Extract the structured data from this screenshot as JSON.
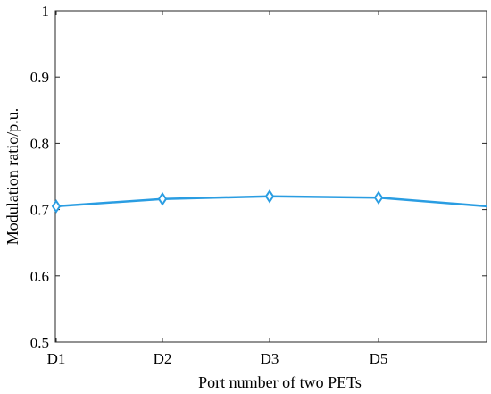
{
  "chart_data": {
    "type": "line",
    "title": "",
    "xlabel": "Port number of two PETs",
    "ylabel": "Modulation ratio/p.u.",
    "categories": [
      "D1",
      "D2",
      "D3",
      "D5"
    ],
    "ylim": [
      0.5,
      1.0
    ],
    "yticks": [
      0.5,
      0.6,
      0.7,
      0.8,
      0.9,
      1.0
    ],
    "ytick_labels": [
      "0.5",
      "0.6",
      "0.7",
      "0.8",
      "0.9",
      "1"
    ],
    "grid": false,
    "legend": "none",
    "series": [
      {
        "color": "#2a9de2",
        "marker": "diamond",
        "values": [
          0.705,
          0.716,
          0.72,
          0.718
        ],
        "line_end_value": 0.705
      }
    ]
  }
}
